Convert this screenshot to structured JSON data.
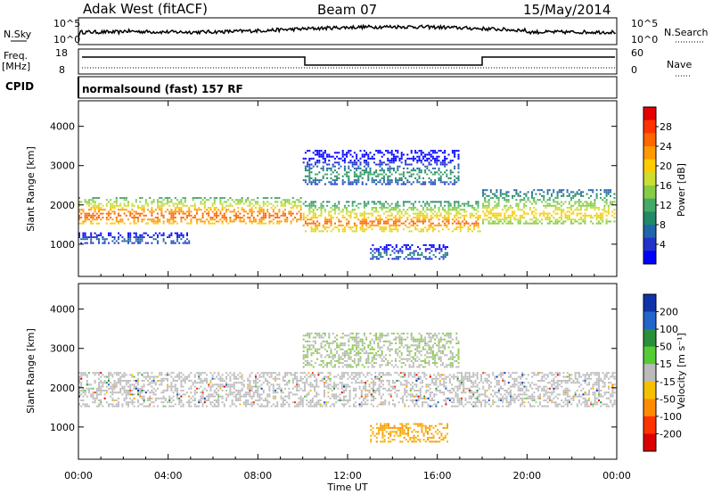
{
  "header": {
    "radar": "Adak West (fitACF)",
    "beam": "Beam 07",
    "date": "15/May/2014"
  },
  "top_panels": {
    "nsky_label": "N.Sky",
    "nsky_ticks": [
      "10^5",
      "10^0"
    ],
    "nsearch_label": "N.Search",
    "freq_label_1": "Freq.",
    "freq_label_2": "[MHz]",
    "freq_ticks": [
      "18",
      "8"
    ],
    "nave_label": "Nave",
    "nave_ticks": [
      "60",
      "0"
    ],
    "cpid_label": "CPID",
    "cpid_text": "normalsound (fast) 157 RF"
  },
  "panels": {
    "power": {
      "ylabel": "Slant Range [km]",
      "colorbar_label": "Power [dB]",
      "colorbar_ticks": [
        "28",
        "24",
        "20",
        "16",
        "12",
        "8",
        "4"
      ],
      "colors": [
        "#e60000",
        "#ff3300",
        "#ff6600",
        "#ff9900",
        "#ffcc00",
        "#ccdd33",
        "#88cc44",
        "#44aa66",
        "#228866",
        "#2266aa",
        "#2233cc",
        "#0000ff"
      ]
    },
    "velocity": {
      "ylabel": "Slant Range [km]",
      "colorbar_label": "Velocity [m s⁻¹]",
      "colorbar_ticks": [
        "200",
        "100",
        "50",
        "15",
        "-15",
        "-50",
        "-100",
        "-200"
      ],
      "colors": [
        "#1133aa",
        "#2266cc",
        "#2a8f3a",
        "#55cc33",
        "#bbbbbb",
        "#f5c000",
        "#ff8c00",
        "#ff3300",
        "#dd0000"
      ]
    }
  },
  "xaxis": {
    "label": "Time UT",
    "ticks": [
      "00:00",
      "04:00",
      "08:00",
      "12:00",
      "16:00",
      "20:00",
      "00:00"
    ]
  },
  "chart_data": [
    {
      "type": "heatmap",
      "title": "",
      "xlabel": "Time UT",
      "ylabel": "Slant Range [km]",
      "xlim": [
        0,
        24
      ],
      "ylim": [
        180,
        4650
      ],
      "y_ticks": [
        1000,
        2000,
        3000,
        4000
      ],
      "colorbar": {
        "label": "Power [dB]",
        "ticks": [
          4,
          8,
          12,
          16,
          20,
          24,
          28
        ],
        "range": [
          0,
          30
        ]
      },
      "features": [
        {
          "t_start": 0,
          "t_end": 10,
          "range_km": [
            1500,
            2200
          ],
          "power_db": 26
        },
        {
          "t_start": 10,
          "t_end": 18,
          "range_km": [
            1300,
            2100
          ],
          "power_db": 24
        },
        {
          "t_start": 18,
          "t_end": 24,
          "range_km": [
            1500,
            2400
          ],
          "power_db": 20
        },
        {
          "t_start": 10,
          "t_end": 17,
          "range_km": [
            2500,
            3400
          ],
          "power_db": 10
        },
        {
          "t_start": 13,
          "t_end": 16.5,
          "range_km": [
            600,
            1000
          ],
          "power_db": 8
        },
        {
          "t_start": 0,
          "t_end": 5,
          "range_km": [
            1000,
            1300
          ],
          "power_db": 8
        }
      ]
    },
    {
      "type": "heatmap",
      "title": "",
      "xlabel": "Time UT",
      "ylabel": "Slant Range [km]",
      "xlim": [
        0,
        24
      ],
      "ylim": [
        180,
        4650
      ],
      "y_ticks": [
        1000,
        2000,
        3000,
        4000
      ],
      "colorbar": {
        "label": "Velocity [m s⁻¹]",
        "ticks": [
          -200,
          -100,
          -50,
          -15,
          15,
          50,
          100,
          200
        ],
        "range": [
          -250,
          250
        ]
      },
      "features": [
        {
          "t_start": 0,
          "t_end": 24,
          "range_km": [
            1500,
            2400
          ],
          "velocity": 0
        },
        {
          "t_start": 13,
          "t_end": 16.5,
          "range_km": [
            600,
            1100
          ],
          "velocity": -50
        },
        {
          "t_start": 10,
          "t_end": 17,
          "range_km": [
            2500,
            3400
          ],
          "velocity": 15
        }
      ]
    }
  ]
}
